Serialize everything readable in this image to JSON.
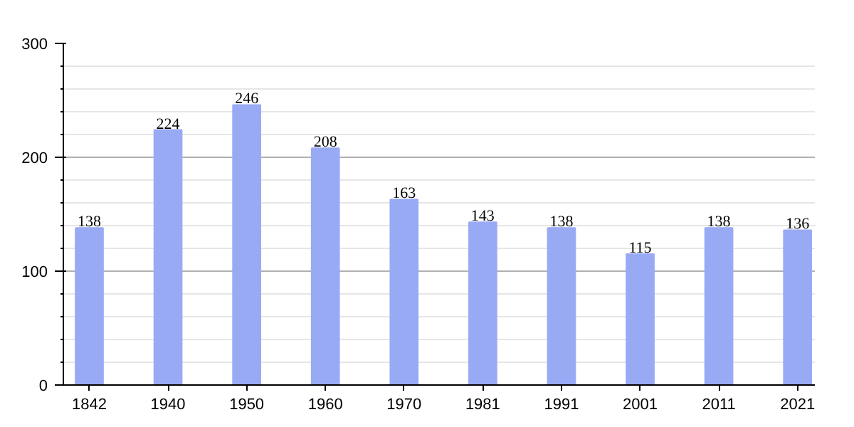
{
  "chart_data": {
    "type": "bar",
    "categories": [
      "1842",
      "1940",
      "1950",
      "1960",
      "1970",
      "1981",
      "1991",
      "2001",
      "2011",
      "2021"
    ],
    "values": [
      138,
      224,
      246,
      208,
      163,
      143,
      138,
      115,
      138,
      136
    ],
    "color": "#99aaf5",
    "ylim": [
      0,
      300
    ],
    "yticks": [
      0,
      100,
      200,
      300
    ],
    "grid": "y",
    "data_labels": true
  }
}
